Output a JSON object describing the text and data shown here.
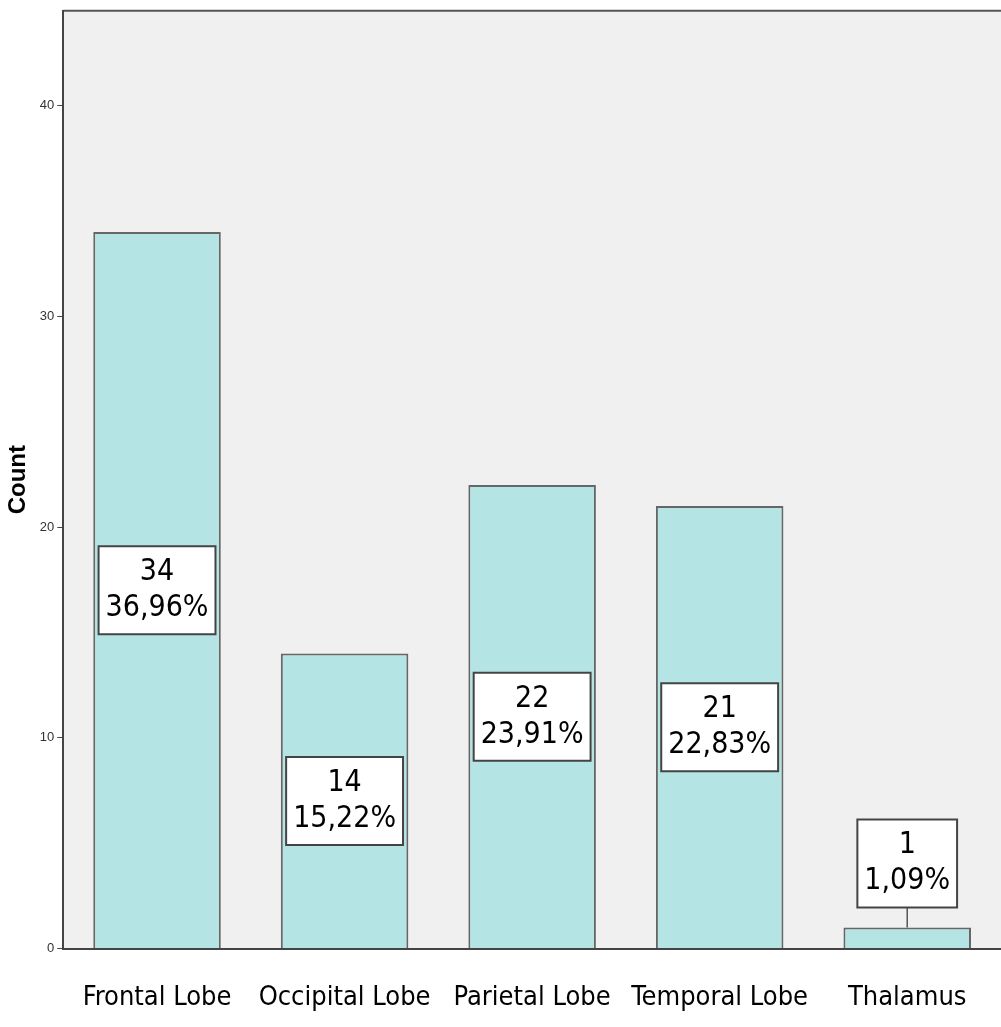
{
  "chart_data": {
    "type": "bar",
    "ylabel": "Count",
    "categories": [
      "Frontal Lobe",
      "Occipital Lobe",
      "Parietal Lobe",
      "Temporal Lobe",
      "Thalamus"
    ],
    "values": [
      34,
      14,
      22,
      21,
      1
    ],
    "value_labels": [
      "34\n36,96%",
      "14\n15,22%",
      "22\n23,91%",
      "21\n22,83%",
      "1\n1,09%"
    ],
    "color": "#b4e4e4",
    "ylim": [
      0,
      44.5
    ],
    "yticks": [
      0,
      10,
      20,
      30,
      40
    ],
    "grid": false,
    "legend": false
  }
}
